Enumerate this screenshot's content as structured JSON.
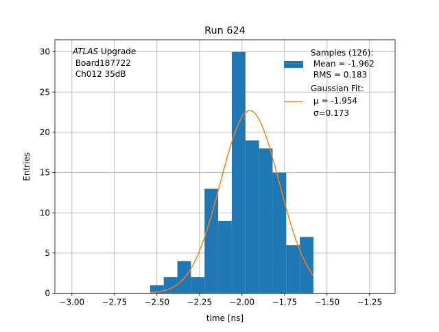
{
  "chart_data": {
    "type": "histogram",
    "title": "Run 624",
    "xlabel": "time [ns]",
    "ylabel": "Entries",
    "xlim": [
      -3.1,
      -1.1
    ],
    "ylim": [
      0,
      31.5
    ],
    "grid": true,
    "x_ticks": [
      -3.0,
      -2.75,
      -2.5,
      -2.25,
      -2.0,
      -1.75,
      -1.5,
      -1.25
    ],
    "x_tick_labels": [
      "−3.00",
      "−2.75",
      "−2.50",
      "−2.25",
      "−2.00",
      "−1.75",
      "−1.50",
      "−1.25"
    ],
    "y_ticks": [
      0,
      5,
      10,
      15,
      20,
      25,
      30
    ],
    "y_tick_labels": [
      "0",
      "5",
      "10",
      "15",
      "20",
      "25",
      "30"
    ],
    "bin_edges": [
      -2.54,
      -2.46,
      -2.38,
      -2.3,
      -2.22,
      -2.14,
      -2.06,
      -1.98,
      -1.9,
      -1.82,
      -1.74,
      -1.66,
      -1.58
    ],
    "counts": [
      1,
      2,
      4,
      2,
      13,
      9,
      30,
      19,
      18,
      15,
      6,
      7
    ],
    "fit": {
      "name_line1": "Gaussian Fit:",
      "mu_label": "μ = -1.954",
      "sigma_label": "σ=0.173",
      "mu": -1.954,
      "sigma": 0.173,
      "amplitude": 22.7,
      "x_range": [
        -2.54,
        -1.58
      ]
    },
    "legend": {
      "placement": "top-right",
      "samples_line1": "Samples (126):",
      "samples_line2": " Mean = -1.962",
      "samples_line3": " RMS = 0.183"
    },
    "annotation": {
      "italic_part": "ATLAS",
      "line1_rest": " Upgrade",
      "line2": " Board187722",
      "line3": " Ch012 35dB"
    },
    "colors": {
      "bars": "#1f77b4",
      "fit": "#ff7f0e",
      "grid": "#b0b0b0"
    }
  }
}
